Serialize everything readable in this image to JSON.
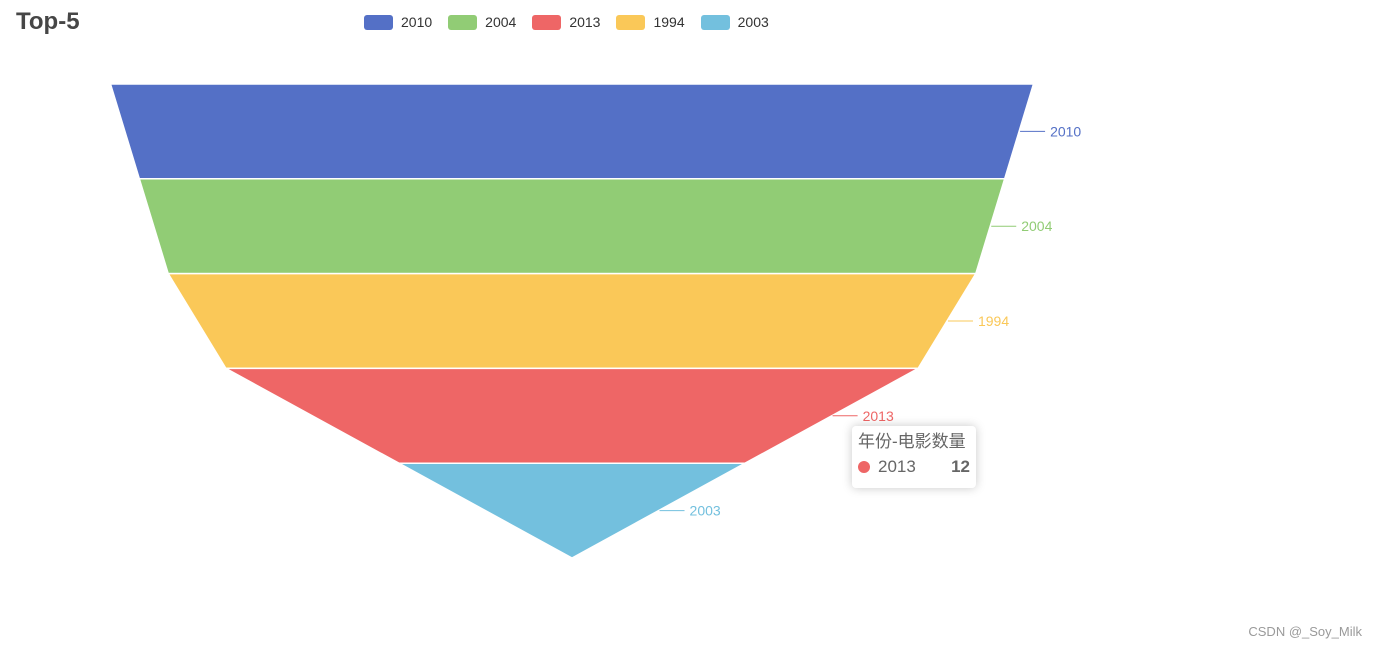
{
  "chart_data": {
    "type": "funnel",
    "title": "Top-5",
    "legend_position": "top-center",
    "legend": [
      "2010",
      "2004",
      "2013",
      "1994",
      "2003"
    ],
    "items": [
      {
        "name": "2010",
        "value": 16,
        "color": "#5470c6"
      },
      {
        "name": "2004",
        "value": 15,
        "color": "#91cc75"
      },
      {
        "name": "1994",
        "value": 14,
        "color": "#fac858"
      },
      {
        "name": "2013",
        "value": 12,
        "color": "#ee6666"
      },
      {
        "name": "2003",
        "value": 6,
        "color": "#73c0de"
      }
    ],
    "tooltip": {
      "title": "年份-电影数量",
      "name": "2013",
      "value": "12",
      "color": "#ee6666"
    }
  },
  "watermark": "CSDN @_Soy_Milk"
}
